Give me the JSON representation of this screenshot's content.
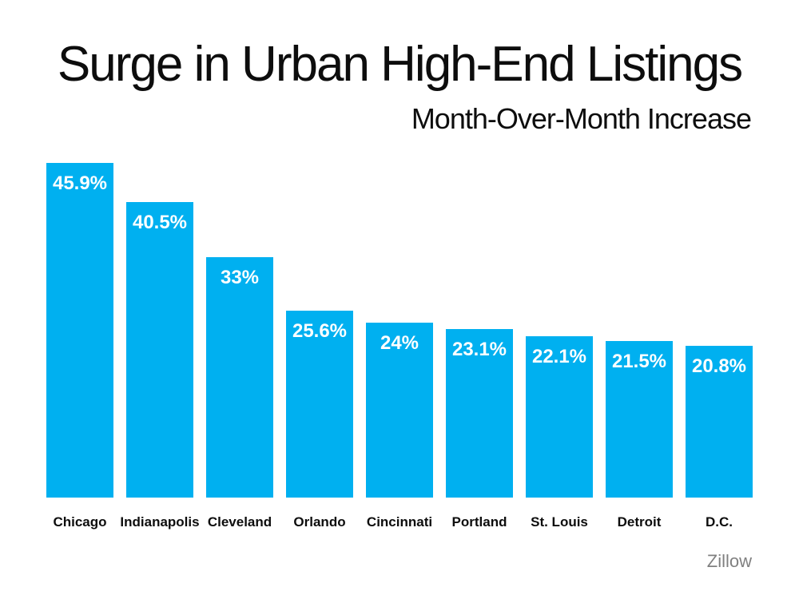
{
  "chart_data": {
    "type": "bar",
    "title": "Surge in Urban High-End Listings",
    "subtitle": "Month-Over-Month Increase",
    "categories": [
      "Chicago",
      "Indianapolis",
      "Cleveland",
      "Orlando",
      "Cincinnati",
      "Portland",
      "St. Louis",
      "Detroit",
      "D.C."
    ],
    "values": [
      45.9,
      40.5,
      33,
      25.6,
      24,
      23.1,
      22.1,
      21.5,
      20.8
    ],
    "value_labels": [
      "45.9%",
      "40.5%",
      "33%",
      "25.6%",
      "24%",
      "23.1%",
      "22.1%",
      "21.5%",
      "20.8%"
    ],
    "xlabel": "",
    "ylabel": "",
    "ylim": [
      0,
      46
    ],
    "grid": false,
    "legend": false,
    "axes_visible": false,
    "bar_color": "#00B0F0",
    "value_label_color": "#ffffff",
    "source": "Zillow"
  }
}
